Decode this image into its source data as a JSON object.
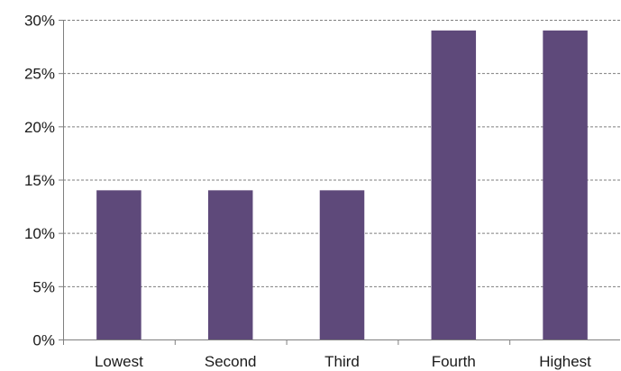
{
  "chart_data": {
    "type": "bar",
    "categories": [
      "Lowest",
      "Second",
      "Third",
      "Fourth",
      "Highest"
    ],
    "values": [
      14,
      14,
      14,
      29,
      29
    ],
    "title": "",
    "xlabel": "",
    "ylabel": "",
    "ylim": [
      0,
      30
    ],
    "yticks": [
      0,
      5,
      10,
      15,
      20,
      25,
      30
    ],
    "ytick_labels": [
      "0%",
      "5%",
      "10%",
      "15%",
      "20%",
      "25%",
      "30%"
    ],
    "value_format": "percent",
    "grid": "horizontal-dashed",
    "legend": "none",
    "bar_color": "#5e497a",
    "grid_color": "#7f7f7f"
  }
}
